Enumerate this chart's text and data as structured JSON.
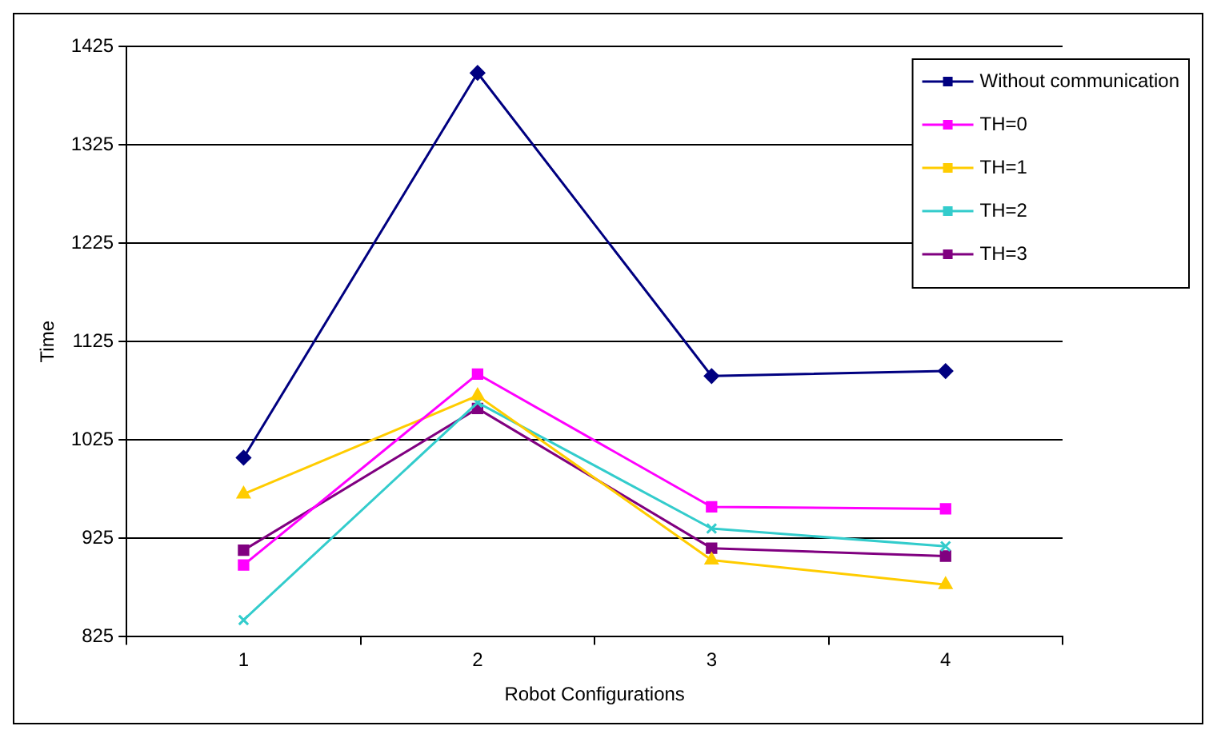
{
  "chart_data": {
    "type": "line",
    "xlabel": "Robot Configurations",
    "ylabel": "Time",
    "categories": [
      "1",
      "2",
      "3",
      "4"
    ],
    "series": [
      {
        "name": "Without communication",
        "color": "#000080",
        "marker": "diamond",
        "values": [
          1007,
          1398,
          1090,
          1095
        ]
      },
      {
        "name": "TH=0",
        "color": "#ff00ff",
        "marker": "square",
        "values": [
          898,
          1092,
          957,
          955
        ]
      },
      {
        "name": "TH=1",
        "color": "#ffcc00",
        "marker": "triangle",
        "values": [
          970,
          1070,
          903,
          878
        ]
      },
      {
        "name": "TH=2",
        "color": "#33cccc",
        "marker": "cross",
        "values": [
          842,
          1063,
          935,
          917
        ]
      },
      {
        "name": "TH=3",
        "color": "#800080",
        "marker": "square",
        "values": [
          913,
          1057,
          915,
          907
        ]
      }
    ],
    "ylim": [
      825,
      1425
    ],
    "yticks": [
      825,
      925,
      1025,
      1125,
      1225,
      1325,
      1425
    ],
    "grid": "y",
    "legend": "top right",
    "line_style": "solid"
  }
}
